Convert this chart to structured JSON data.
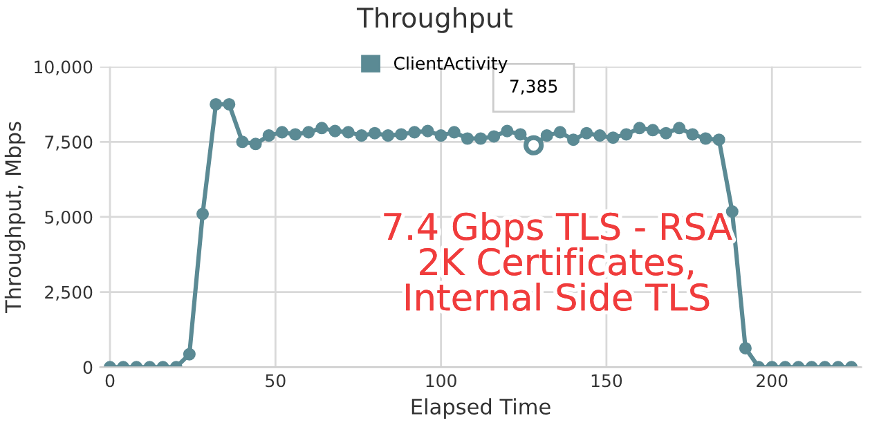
{
  "chart_data": {
    "type": "line",
    "title": "Throughput",
    "xlabel": "Elapsed Time",
    "ylabel": "Throughput, Mbps",
    "x": [
      0,
      4,
      8,
      12,
      16,
      20,
      24,
      28,
      32,
      36,
      40,
      44,
      48,
      52,
      56,
      60,
      64,
      68,
      72,
      76,
      80,
      84,
      88,
      92,
      96,
      100,
      104,
      108,
      112,
      116,
      120,
      124,
      128,
      132,
      136,
      140,
      144,
      148,
      152,
      156,
      160,
      164,
      168,
      172,
      176,
      180,
      184,
      188,
      192,
      196,
      200,
      204,
      208,
      212,
      216,
      220,
      224
    ],
    "series": [
      {
        "name": "ClientActivity",
        "color": "#5b8a94",
        "values": [
          0,
          0,
          0,
          0,
          0,
          0,
          430,
          5100,
          8750,
          8750,
          7500,
          7430,
          7710,
          7820,
          7750,
          7820,
          7960,
          7860,
          7820,
          7710,
          7790,
          7710,
          7750,
          7820,
          7860,
          7710,
          7820,
          7610,
          7610,
          7680,
          7860,
          7750,
          7385,
          7710,
          7820,
          7570,
          7790,
          7710,
          7640,
          7750,
          7960,
          7890,
          7790,
          7960,
          7750,
          7610,
          7570,
          5180,
          630,
          0,
          0,
          0,
          0,
          0,
          0,
          0,
          0
        ]
      }
    ],
    "xlim": [
      -3,
      227
    ],
    "xticks": [
      0,
      50,
      100,
      150,
      200
    ],
    "ylim": [
      0,
      10000
    ],
    "yticks": [
      0,
      {
        "value": 2500,
        "label": "2,500"
      },
      {
        "value": 5000,
        "label": "5,000"
      },
      {
        "value": 7500,
        "label": "7,500"
      },
      {
        "value": 10000,
        "label": "10,000"
      }
    ],
    "annotations": [
      {
        "text": "7,385",
        "x": 128,
        "y": 7385
      },
      "7.4 Gbps TLS - RSA\n2K Certificates,\nInternal Side TLS"
    ],
    "grid": true,
    "legend": "top",
    "marker": "circle",
    "line_style": "solid"
  }
}
